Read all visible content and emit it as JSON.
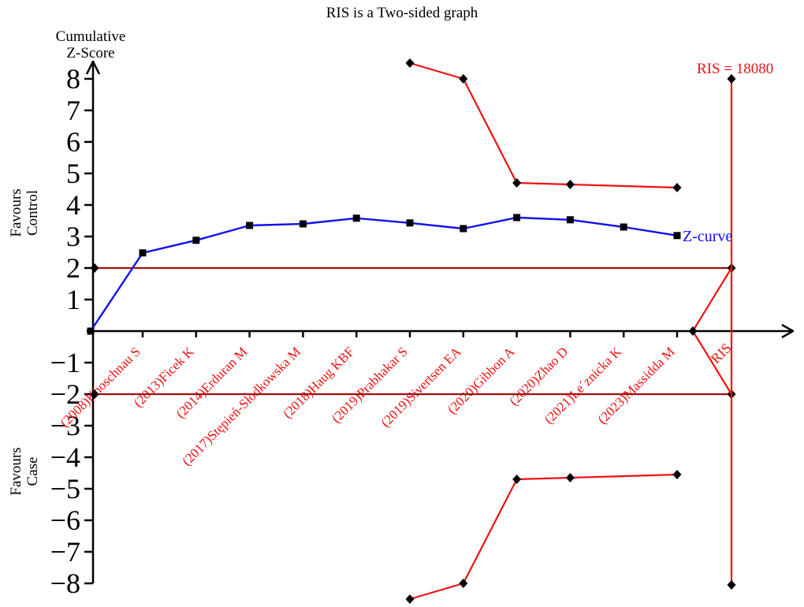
{
  "chart_data": {
    "type": "line",
    "title": "RIS is a Two-sided graph",
    "ylabel": "Cumulative Z-Score",
    "xlabel": "",
    "ylim": [
      -8.7,
      8.7
    ],
    "grid": false,
    "y_ticks": [
      8,
      7,
      6,
      5,
      4,
      3,
      2,
      1,
      -1,
      -2,
      -3,
      -4,
      -5,
      -6,
      -7,
      -8
    ],
    "studies": [
      "(2008)Khoschnau S",
      "(2013)Ficek K",
      "(2014)Erduran M",
      "(2017)Stępień-Słodkowska M",
      "(2018)Haug KBF",
      "(2019)Prabhakar S",
      "(2019)Sivertsen EA",
      "(2020)Gibbon A",
      "(2020)Zhao D",
      "(2021)Le´znicka K",
      "(2023)Massidda M"
    ],
    "z_curve": {
      "name": "Z-curve",
      "starts_at_origin": true,
      "origin_z": 0,
      "values": [
        2.48,
        2.88,
        3.35,
        3.4,
        3.58,
        3.43,
        3.25,
        3.6,
        3.53,
        3.3,
        3.03
      ]
    },
    "upper_monitoring_boundary": {
      "points": [
        {
          "study": 5,
          "z": 8.5
        },
        {
          "study": 6,
          "z": 8.0
        },
        {
          "study": 7,
          "z": 4.7
        },
        {
          "study": 8,
          "z": 4.65
        },
        {
          "study": 10,
          "z": 4.55
        }
      ]
    },
    "lower_monitoring_boundary": {
      "points": [
        {
          "study": 5,
          "z": -8.5
        },
        {
          "study": 6,
          "z": -8.0
        },
        {
          "study": 7,
          "z": -4.7
        },
        {
          "study": 8,
          "z": -4.65
        },
        {
          "study": 10,
          "z": -4.55
        }
      ]
    },
    "conventional_boundaries": {
      "upper_z": 2,
      "lower_z": -2
    },
    "ris": {
      "value": 18080,
      "label": "RIS = 18080",
      "axis_label": "RIS",
      "top_z": 8.0,
      "bottom_z": -8.05,
      "wedge_apex_z": 0
    },
    "annotations": {
      "favours_top_line1": "Favours",
      "favours_top_line2": "Control",
      "favours_bottom_line1": "Favours",
      "favours_bottom_line2": "Case",
      "y_axis_title_line1": "Cumulative",
      "y_axis_title_line2": "Z-Score"
    },
    "colors": {
      "z_curve": "#1010EE",
      "monitoring_boundary": "#EE1111",
      "conventional_boundary": "#A01010",
      "axis": "#000000",
      "study_labels": "#EE1111",
      "marker": "#000000"
    },
    "legend_position": "right-of-last-z-point"
  }
}
